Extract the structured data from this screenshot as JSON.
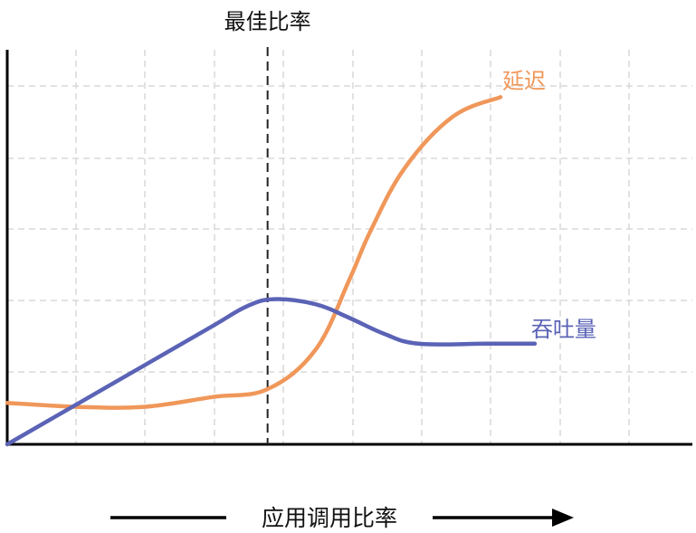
{
  "chart_data": {
    "type": "line",
    "title": "",
    "xlabel": "应用调用比率",
    "ylabel": "",
    "xlim": [
      0,
      10
    ],
    "ylim": [
      0,
      10
    ],
    "grid": true,
    "legend": "inline labels at line ends",
    "annotation": {
      "label": "最佳比率",
      "x": 3.8
    },
    "series": [
      {
        "name": "延迟",
        "color": "#F0975A",
        "x": [
          0,
          1,
          2,
          3,
          3.8,
          4.5,
          5,
          5.3,
          5.8,
          6.5,
          7.2
        ],
        "y": [
          1.05,
          0.95,
          0.95,
          1.2,
          1.4,
          2.4,
          4.2,
          5.4,
          7.0,
          8.3,
          8.8
        ]
      },
      {
        "name": "吞吐量",
        "color": "#5B63B6",
        "x": [
          0,
          1,
          2,
          3,
          3.5,
          3.9,
          4.5,
          5,
          5.5,
          6,
          7,
          7.7
        ],
        "y": [
          0,
          1.0,
          2.0,
          3.0,
          3.5,
          3.68,
          3.55,
          3.2,
          2.8,
          2.55,
          2.55,
          2.55
        ]
      }
    ],
    "colors": {
      "axis": "#000000",
      "grid": "#D9D9D9",
      "marker_line": "#222222"
    }
  }
}
